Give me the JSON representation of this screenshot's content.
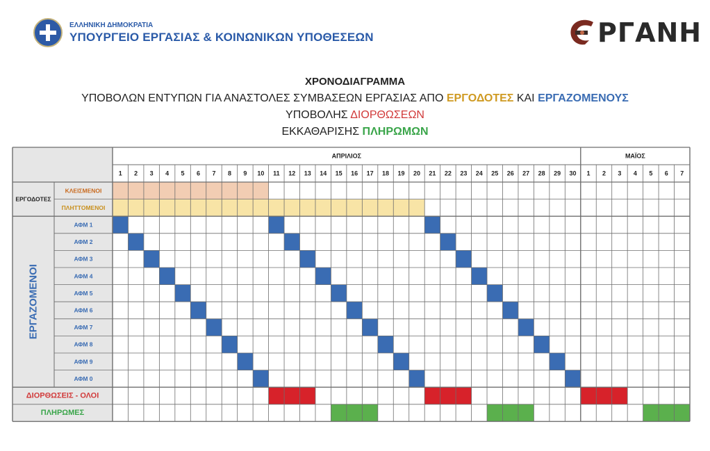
{
  "header": {
    "country": "ΕΛΛΗΝΙΚΗ ΔΗΜΟΚΡΑΤΙΑ",
    "ministry": "ΥΠΟΥΡΓΕΙΟ ΕΡΓΑΣΙΑΣ & ΚΟΙΝΩΝΙΚΩΝ ΥΠΟΘΕΣΕΩΝ",
    "logo_text": "ΡΓΑΝΗ"
  },
  "titles": {
    "line1": "ΧΡΟΝΟΔΙΑΓΡΑΜΜΑ",
    "line2_a": "ΥΠΟΒΟΛΩΝ ΕΝΤΥΠΩΝ ΓΙΑ ΑΝΑΣΤΟΛΕΣ ΣΥΜΒΑΣΕΩΝ ΕΡΓΑΣΙΑΣ ΑΠΟ ",
    "line2_b": "ΕΡΓΟΔΟΤΕΣ",
    "line2_c": " ΚΑΙ ",
    "line2_d": "ΕΡΓΑΖΟΜΕΝΟΥΣ",
    "line3_a": "ΥΠΟΒΟΛΗΣ ",
    "line3_b": "ΔΙΟΡΘΩΣΕΩΝ",
    "line4_a": "ΕΚΚΑΘΑΡΙΣΗΣ ",
    "line4_b": "ΠΛΗΡΩΜΩΝ"
  },
  "schedule": {
    "months": [
      {
        "name": "ΑΠΡΙΛΙΟΣ",
        "days": 30
      },
      {
        "name": "ΜΑΪΟΣ",
        "days": 7
      }
    ],
    "groups": {
      "employers": "ΕΡΓΟΔΟΤΕΣ",
      "employees": "ΕΡΓΑΖΟΜΕΝΟΙ"
    },
    "employer_rows": [
      {
        "label": "ΚΛΕΙΣΜΕΝΟΙ",
        "start": 1,
        "end": 10,
        "color": "#f2cdb3",
        "label_color": "#c96a1e"
      },
      {
        "label": "ΠΛΗΤΤΟΜΕΝΟΙ",
        "start": 1,
        "end": 20,
        "color": "#f8e4a6",
        "label_color": "#c9901e"
      }
    ],
    "employee_rows": [
      {
        "label": "ΑΦΜ 1",
        "days": [
          1,
          11,
          21
        ]
      },
      {
        "label": "ΑΦΜ 2",
        "days": [
          2,
          12,
          22
        ]
      },
      {
        "label": "ΑΦΜ 3",
        "days": [
          3,
          13,
          23
        ]
      },
      {
        "label": "ΑΦΜ 4",
        "days": [
          4,
          14,
          24
        ]
      },
      {
        "label": "ΑΦΜ 5",
        "days": [
          5,
          15,
          25
        ]
      },
      {
        "label": "ΑΦΜ 6",
        "days": [
          6,
          16,
          26
        ]
      },
      {
        "label": "ΑΦΜ 7",
        "days": [
          7,
          17,
          27
        ]
      },
      {
        "label": "ΑΦΜ 8",
        "days": [
          8,
          18,
          28
        ]
      },
      {
        "label": "ΑΦΜ 9",
        "days": [
          9,
          19,
          29
        ]
      },
      {
        "label": "ΑΦΜ 0",
        "days": [
          10,
          20,
          30
        ]
      }
    ],
    "corrections": {
      "label": "ΔΙΟΡΘΩΣΕΙΣ - ΟΛΟΙ",
      "days": [
        11,
        12,
        13,
        21,
        22,
        23,
        31,
        32,
        33
      ]
    },
    "payments": {
      "label": "ΠΛΗΡΩΜΕΣ",
      "days": [
        15,
        16,
        17,
        25,
        26,
        27,
        35,
        36,
        37
      ]
    }
  },
  "colors": {
    "blue": "#3a6cb3",
    "red": "#d7222a",
    "green": "#5bb04d",
    "label_blue": "#3a6cb3",
    "label_red": "#d13a3a",
    "label_green": "#3aa54a",
    "grey": "#e6e6e6",
    "grid": "#6e6e6e"
  }
}
